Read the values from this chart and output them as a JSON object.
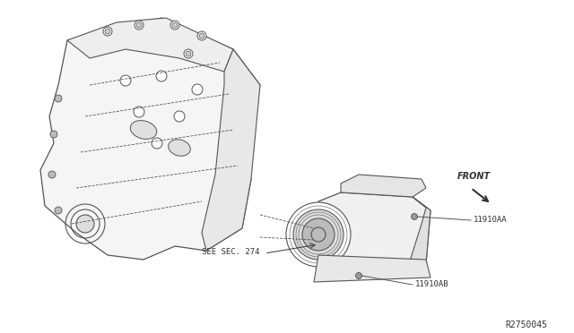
{
  "bg_color": "#ffffff",
  "line_color": "#555555",
  "dark_color": "#333333",
  "label_11910AA": "11910AA",
  "label_11910AB": "11910AB",
  "label_see_sec": "SEE SEC. 274",
  "label_front": "FRONT",
  "label_ref": "R2750045",
  "figsize": [
    6.4,
    3.72
  ],
  "dpi": 100
}
